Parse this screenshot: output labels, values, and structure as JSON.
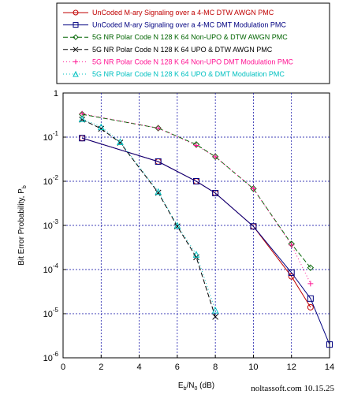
{
  "chart_data": {
    "type": "line",
    "xlabel": "E_b/N_0 (dB)",
    "ylabel": "Bit Error Probability, P_b",
    "xlim": [
      0,
      14
    ],
    "ylim": [
      1e-06,
      1
    ],
    "yscale": "log",
    "grid": true,
    "legend_position": "top",
    "x_ticks": [
      0,
      2,
      4,
      6,
      8,
      10,
      12,
      14
    ],
    "y_ticks": [
      1e-06,
      1e-05,
      0.0001,
      0.001,
      0.01,
      0.1,
      1
    ],
    "y_tick_labels": [
      {
        "base": "10",
        "exp": "-6"
      },
      {
        "base": "10",
        "exp": "-5"
      },
      {
        "base": "10",
        "exp": "-4"
      },
      {
        "base": "10",
        "exp": "-3"
      },
      {
        "base": "10",
        "exp": "-2"
      },
      {
        "base": "10",
        "exp": "-1"
      },
      {
        "base": "1",
        "exp": ""
      }
    ],
    "series": [
      {
        "name": "UnCoded M-ary Signaling over a 4-MC DTW AWGN PMC",
        "color": "#c00000",
        "dash": "",
        "marker": "circle",
        "x": [
          1,
          5,
          7,
          8,
          10,
          12,
          13
        ],
        "y": [
          0.095,
          0.028,
          0.01,
          0.0054,
          0.00095,
          7e-05,
          1.4e-05
        ]
      },
      {
        "name": "UnCoded M-ary Signaling over a 4-MC DMT Modulation PMC",
        "color": "#000080",
        "dash": "",
        "marker": "square",
        "x": [
          1,
          5,
          7,
          8,
          10,
          12,
          13,
          14
        ],
        "y": [
          0.095,
          0.028,
          0.01,
          0.0054,
          0.00095,
          8.5e-05,
          2.2e-05,
          2e-06
        ]
      },
      {
        "name": "5G NR Polar Code N 128 K 64 Non-UPO & DTW AWGN PMC",
        "color": "#006400",
        "dash": "6,3",
        "marker": "diamond",
        "x": [
          1,
          5,
          7,
          8,
          10,
          12,
          13
        ],
        "y": [
          0.33,
          0.16,
          0.068,
          0.036,
          0.0068,
          0.00038,
          0.00011
        ]
      },
      {
        "name": "5G NR Polar Code N 128 K 64 UPO & DTW AWGN PMC",
        "color": "#000000",
        "dash": "6,3",
        "marker": "x",
        "x": [
          1,
          2,
          3,
          5,
          6,
          7,
          8
        ],
        "y": [
          0.25,
          0.155,
          0.075,
          0.0055,
          0.00095,
          0.00019,
          8.5e-06
        ]
      },
      {
        "name": "5G NR Polar Code N 128 K 64 Non-UPO DMT Modulation PMC",
        "color": "#ff1493",
        "dash": "1,3",
        "marker": "plus",
        "x": [
          1,
          5,
          7,
          8,
          10,
          12,
          13
        ],
        "y": [
          0.34,
          0.16,
          0.065,
          0.036,
          0.0068,
          0.00036,
          4.8e-05
        ]
      },
      {
        "name": "5G NR Polar Code N 128 K 64 UPO & DMT Modulation PMC",
        "color": "#00c0c0",
        "dash": "1,3",
        "marker": "triangle",
        "x": [
          1,
          2,
          3,
          5,
          6,
          7,
          8
        ],
        "y": [
          0.26,
          0.17,
          0.078,
          0.0058,
          0.001,
          0.00022,
          1.2e-05
        ]
      }
    ]
  },
  "watermark": "noltassoft.com 10.15.25"
}
